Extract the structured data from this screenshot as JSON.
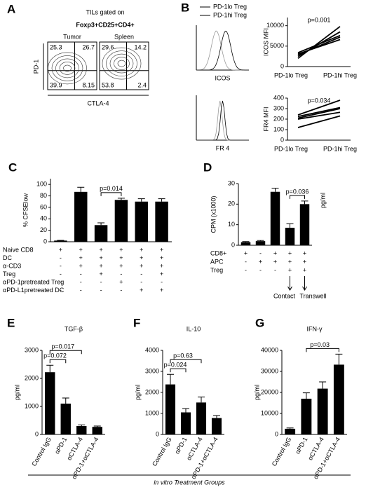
{
  "chart_data": [
    {
      "type": "flow",
      "panel": "A",
      "title": "TILs gated on",
      "subtitle": "Foxp3+CD25+CD4+",
      "ylabel": "PD-1",
      "xlabel": "CTLA-4",
      "plots": [
        {
          "name": "Tumor",
          "quadrants": [
            25.3,
            26.7,
            39.9,
            8.15
          ]
        },
        {
          "name": "Spleen",
          "quadrants": [
            29.6,
            14.2,
            53.8,
            2.4
          ]
        }
      ]
    },
    {
      "type": "histogram",
      "panel": "B",
      "series": [
        {
          "name": "PD-1lo Treg",
          "color": "#9a9a9a"
        },
        {
          "name": "PD-1hi Treg",
          "color": "#000000"
        }
      ],
      "xlabels": [
        "ICOS",
        "FR 4"
      ]
    },
    {
      "type": "paired",
      "ylabel": "ICOS MFI",
      "annotation": "p=0.001",
      "categories": [
        "PD-1lo Treg",
        "PD-1hi Treg"
      ],
      "ylim": [
        0,
        12000
      ],
      "yticks": [
        0,
        5000,
        10000
      ],
      "series": [
        {
          "values": [
            2000,
            9800
          ]
        },
        {
          "values": [
            2500,
            8500
          ]
        },
        {
          "values": [
            2900,
            7200
          ]
        },
        {
          "values": [
            3100,
            6600
          ]
        },
        {
          "values": [
            3400,
            7600
          ]
        }
      ]
    },
    {
      "type": "paired",
      "ylabel": "FR4 MFI",
      "annotation": "p=0.034",
      "categories": [
        "PD-1lo Treg",
        "PD-1hi Treg"
      ],
      "ylim": [
        0,
        400
      ],
      "yticks": [
        0,
        100,
        200,
        300,
        400
      ],
      "series": [
        {
          "values": [
            120,
            230
          ]
        },
        {
          "values": [
            200,
            265
          ]
        },
        {
          "values": [
            210,
            300
          ]
        },
        {
          "values": [
            225,
            310
          ]
        },
        {
          "values": [
            240,
            380
          ]
        }
      ]
    },
    {
      "type": "bar",
      "panel": "C",
      "ylabel": "% CFSElow",
      "color": "#000000",
      "ylim": [
        0,
        110
      ],
      "yticks": [
        0,
        20,
        40,
        60,
        80,
        100
      ],
      "values": [
        2,
        87,
        29,
        73,
        70,
        70
      ],
      "errors": [
        0.5,
        8,
        4,
        3,
        5,
        5
      ],
      "brackets": [
        {
          "from": 2,
          "to": 3,
          "label": "p=0.014"
        }
      ],
      "rows": [
        {
          "label": "Naive CD8",
          "cells": [
            "+",
            "+",
            "+",
            "+",
            "+",
            "+"
          ]
        },
        {
          "label": "DC",
          "cells": [
            "-",
            "+",
            "+",
            "+",
            "+",
            "+"
          ]
        },
        {
          "label": "α-CD3",
          "cells": [
            "-",
            "+",
            "+",
            "+",
            "+",
            "+"
          ]
        },
        {
          "label": "Treg",
          "cells": [
            "-",
            "-",
            "+",
            "-",
            "-",
            "+"
          ]
        },
        {
          "label": "αPD-1pretreated Treg",
          "cells": [
            "-",
            "-",
            "-",
            "+",
            "-",
            "-"
          ]
        },
        {
          "label": "αPD-L1pretreated DC",
          "cells": [
            "-",
            "-",
            "-",
            "-",
            "+",
            "+"
          ]
        }
      ]
    },
    {
      "type": "bar",
      "panel": "D",
      "ylabel": "CPM (x1000)",
      "y2label": "pg/ml",
      "color": "#000000",
      "ylim": [
        0,
        30
      ],
      "yticks": [
        0,
        10,
        20,
        30
      ],
      "values": [
        1.5,
        2,
        26,
        8.5,
        20
      ],
      "errors": [
        0.3,
        0.3,
        1.8,
        2,
        1.5
      ],
      "brackets": [
        {
          "from": 3,
          "to": 4,
          "label": "p=0.036"
        }
      ],
      "rows": [
        {
          "label": "CD8+",
          "cells": [
            "+",
            "-",
            "+",
            "+",
            "+"
          ]
        },
        {
          "label": "APC",
          "cells": [
            "-",
            "+",
            "+",
            "+",
            "+"
          ]
        },
        {
          "label": "Treg",
          "cells": [
            "-",
            "-",
            "-",
            "+",
            "+"
          ]
        }
      ],
      "annotations": [
        {
          "text": "Contact",
          "at": 3
        },
        {
          "text": "Transwell",
          "at": 4
        }
      ]
    },
    {
      "type": "bar",
      "panel": "E",
      "title": "TGF-β",
      "ylabel": "pg/ml",
      "color": "#000000",
      "ylim": [
        0,
        3000
      ],
      "yticks": [
        0,
        1000,
        2000,
        3000
      ],
      "categories": [
        "Control IgG",
        "αPD-1",
        "αCTLA-4",
        "αPD-1+αCTLA-4"
      ],
      "values": [
        2220,
        1100,
        300,
        270
      ],
      "errors": [
        250,
        200,
        40,
        30
      ],
      "brackets": [
        {
          "from": 0,
          "to": 1,
          "label": "p=0.072"
        },
        {
          "from": 0,
          "to": 2,
          "label": "p=0.017"
        }
      ]
    },
    {
      "type": "bar",
      "panel": "F",
      "title": "IL-10",
      "ylabel": "pg/ml",
      "color": "#000000",
      "ylim": [
        0,
        4000
      ],
      "yticks": [
        0,
        1000,
        2000,
        3000,
        4000
      ],
      "categories": [
        "Control IgG",
        "αPD-1",
        "αCTLA-4",
        "αPD-1+αCTLA-4"
      ],
      "values": [
        2380,
        1050,
        1520,
        780
      ],
      "errors": [
        480,
        180,
        260,
        120
      ],
      "brackets": [
        {
          "from": 0,
          "to": 1,
          "label": "p=0.024"
        },
        {
          "from": 0,
          "to": 2,
          "label": "p=0.63"
        }
      ]
    },
    {
      "type": "bar",
      "panel": "G",
      "title": "IFN-γ",
      "ylabel": "pg/ml",
      "color": "#000000",
      "ylim": [
        0,
        40000
      ],
      "yticks": [
        0,
        10000,
        20000,
        30000,
        40000
      ],
      "categories": [
        "Control IgG",
        "αPD-1",
        "αCTLA-4",
        "αPD-1+αCTLA-4"
      ],
      "values": [
        2700,
        17000,
        21800,
        33200
      ],
      "errors": [
        400,
        2800,
        3200,
        5000
      ],
      "brackets": [
        {
          "from": 1,
          "to": 3,
          "label": "p=0.03"
        }
      ]
    }
  ],
  "footer": "in vitro Treatment Groups"
}
